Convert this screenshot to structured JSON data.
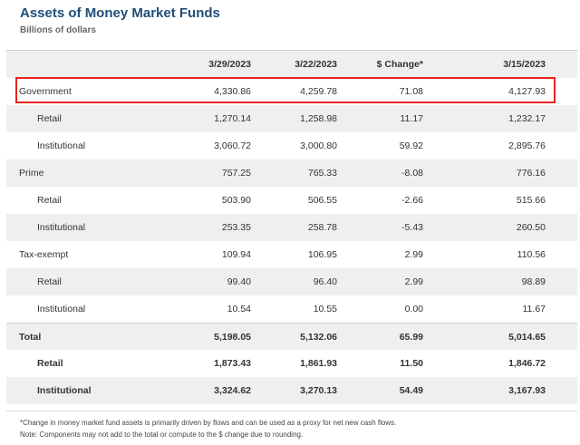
{
  "title": "Assets of Money Market Funds",
  "subtitle": "Billions of dollars",
  "columns": [
    "",
    "3/29/2023",
    "3/22/2023",
    "$ Change*",
    "3/15/2023"
  ],
  "rows": [
    {
      "label": "Government",
      "v1": "4,330.86",
      "v2": "4,259.78",
      "v3": "71.08",
      "v4": "4,127.93"
    },
    {
      "label": "Retail",
      "v1": "1,270.14",
      "v2": "1,258.98",
      "v3": "11.17",
      "v4": "1,232.17"
    },
    {
      "label": "Institutional",
      "v1": "3,060.72",
      "v2": "3,000.80",
      "v3": "59.92",
      "v4": "2,895.76"
    },
    {
      "label": "Prime",
      "v1": "757.25",
      "v2": "765.33",
      "v3": "-8.08",
      "v4": "776.16"
    },
    {
      "label": "Retail",
      "v1": "503.90",
      "v2": "506.55",
      "v3": "-2.66",
      "v4": "515.66"
    },
    {
      "label": "Institutional",
      "v1": "253.35",
      "v2": "258.78",
      "v3": "-5.43",
      "v4": "260.50"
    },
    {
      "label": "Tax-exempt",
      "v1": "109.94",
      "v2": "106.95",
      "v3": "2.99",
      "v4": "110.56"
    },
    {
      "label": "Retail",
      "v1": "99.40",
      "v2": "96.40",
      "v3": "2.99",
      "v4": "98.89"
    },
    {
      "label": "Institutional",
      "v1": "10.54",
      "v2": "10.55",
      "v3": "0.00",
      "v4": "11.67"
    },
    {
      "label": "Total",
      "v1": "5,198.05",
      "v2": "5,132.06",
      "v3": "65.99",
      "v4": "5,014.65"
    },
    {
      "label": "Retail",
      "v1": "1,873.43",
      "v2": "1,861.93",
      "v3": "11.50",
      "v4": "1,846.72"
    },
    {
      "label": "Institutional",
      "v1": "3,324.62",
      "v2": "3,270.13",
      "v3": "54.49",
      "v4": "3,167.93"
    }
  ],
  "footnotes": [
    "*Change in money market fund assets is primarily driven by flows and can be used as a proxy for net new cash flows.",
    "Note: Components may not add to the total or compute to the $ change due to rounding."
  ],
  "colors": {
    "title": "#1f4e79",
    "highlight_border": "#e8231f",
    "row_shade": "#efefef"
  }
}
